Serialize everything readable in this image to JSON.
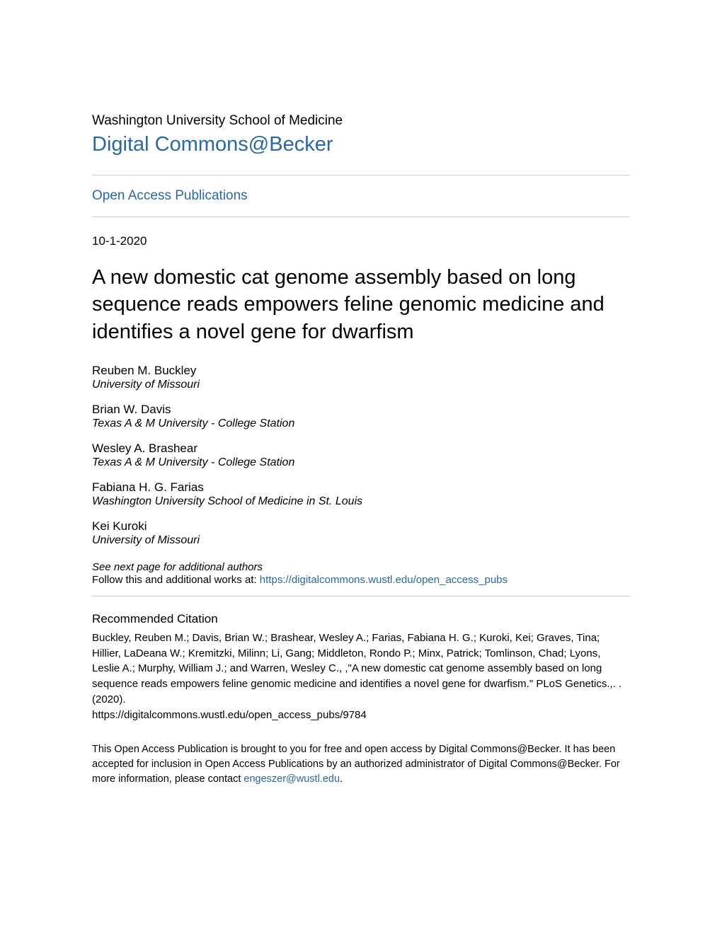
{
  "colors": {
    "link": "#2968a6",
    "text": "#000000",
    "rule": "#cccccc",
    "background": "#ffffff"
  },
  "typography": {
    "body_family": "Helvetica Neue, Helvetica, Arial, sans-serif",
    "institution_fontsize": 19,
    "repo_title_fontsize": 29,
    "section_link_fontsize": 19,
    "date_fontsize": 17,
    "title_fontsize": 29,
    "author_name_fontsize": 17,
    "author_affil_fontsize": 16,
    "small_text_fontsize": 15,
    "rec_heading_fontsize": 17,
    "footer_fontsize": 14.5
  },
  "header": {
    "institution": "Washington University School of Medicine",
    "repo_title": "Digital Commons@Becker",
    "section_link": "Open Access Publications"
  },
  "meta": {
    "date": "10-1-2020"
  },
  "title": "A new domestic cat genome assembly based on long sequence reads empowers feline genomic medicine and identifies a novel gene for dwarfism",
  "authors": [
    {
      "name": "Reuben M. Buckley",
      "affiliation": "University of Missouri"
    },
    {
      "name": "Brian W. Davis",
      "affiliation": "Texas A & M University - College Station"
    },
    {
      "name": "Wesley A. Brashear",
      "affiliation": "Texas A & M University - College Station"
    },
    {
      "name": "Fabiana H. G. Farias",
      "affiliation": "Washington University School of Medicine in St. Louis"
    },
    {
      "name": "Kei Kuroki",
      "affiliation": "University of Missouri"
    }
  ],
  "see_next": "See next page for additional authors",
  "follow": {
    "prefix": "Follow this and additional works at: ",
    "link_text": "https://digitalcommons.wustl.edu/open_access_pubs"
  },
  "recommended": {
    "heading": "Recommended Citation",
    "text": "Buckley, Reuben M.; Davis, Brian W.; Brashear, Wesley A.; Farias, Fabiana H. G.; Kuroki, Kei; Graves, Tina; Hillier, LaDeana W.; Kremitzki, Milinn; Li, Gang; Middleton, Rondo P.; Minx, Patrick; Tomlinson, Chad; Lyons, Leslie A.; Murphy, William J.; and Warren, Wesley C., ,\"A new domestic cat genome assembly based on long sequence reads empowers feline genomic medicine and identifies a novel gene for dwarfism.\" PLoS Genetics.,. . (2020).\nhttps://digitalcommons.wustl.edu/open_access_pubs/9784"
  },
  "footer": {
    "text_before": "This Open Access Publication is brought to you for free and open access by Digital Commons@Becker. It has been accepted for inclusion in Open Access Publications by an authorized administrator of Digital Commons@Becker. For more information, please contact ",
    "link_text": "engeszer@wustl.edu",
    "text_after": "."
  }
}
